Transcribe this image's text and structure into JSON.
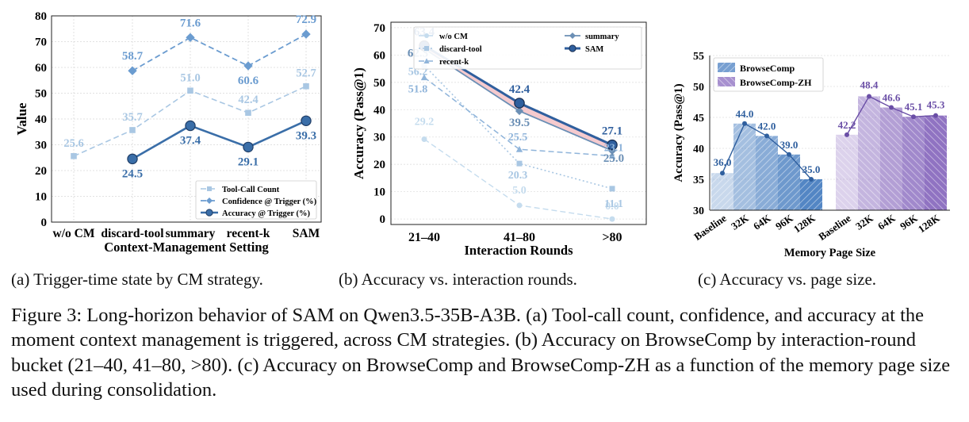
{
  "chart_data": [
    {
      "type": "line",
      "xlabel": "Context-Management Setting",
      "ylabel": "Value",
      "categories": [
        "w/o CM",
        "discard-tool",
        "summary",
        "recent-k",
        "SAM"
      ],
      "ylim": [
        0,
        80
      ],
      "yticks": [
        0,
        10,
        20,
        30,
        40,
        50,
        60,
        70,
        80
      ],
      "grid": true,
      "legend_position": "bottom-right",
      "series": [
        {
          "name": "Tool-Call Count",
          "values": [
            25.6,
            35.7,
            51.0,
            42.4,
            52.7
          ],
          "labels": [
            "25.6",
            "35.7",
            "51.0",
            "42.4",
            "52.7"
          ],
          "color": "#a9c7e3",
          "dash": "dashed",
          "marker": "square"
        },
        {
          "name": "Confidence @ Trigger (%)",
          "values": [
            null,
            58.7,
            71.6,
            60.6,
            72.9
          ],
          "labels": [
            "",
            "58.7",
            "71.6",
            "60.6",
            "72.9"
          ],
          "color": "#6b9cd0",
          "dash": "dashed",
          "marker": "diamond"
        },
        {
          "name": "Accuracy @ Trigger (%)",
          "values": [
            null,
            24.5,
            37.4,
            29.1,
            39.3
          ],
          "labels": [
            "",
            "24.5",
            "37.4",
            "29.1",
            "39.3"
          ],
          "color": "#3a6ea8",
          "dash": "solid",
          "marker": "circle"
        }
      ]
    },
    {
      "type": "line",
      "xlabel": "Interaction Rounds",
      "ylabel": "Accuracy (Pass@1)",
      "categories": [
        "21–40",
        "41–80",
        ">80"
      ],
      "ylim": [
        -2,
        72
      ],
      "yticks": [
        0,
        10,
        20,
        30,
        40,
        50,
        60,
        70
      ],
      "grid": true,
      "legend_position": "top-right",
      "series": [
        {
          "name": "w/o CM",
          "values": [
            29.2,
            5.0,
            0.0
          ],
          "labels": [
            "29.2",
            "5.0",
            "0.0"
          ],
          "color": "#c5dcee",
          "dash": "dashed",
          "marker": "circle"
        },
        {
          "name": "discard-tool",
          "values": [
            56.2,
            20.3,
            11.1
          ],
          "labels": [
            "56.2",
            "20.3",
            "11.1"
          ],
          "color": "#a9c7e3",
          "dash": "dotted",
          "marker": "square"
        },
        {
          "name": "recent-k",
          "values": [
            51.8,
            25.5,
            23.1
          ],
          "labels": [
            "51.8",
            "25.5",
            "23.1"
          ],
          "color": "#8fb4da",
          "dash": "dashed",
          "marker": "triangle"
        },
        {
          "name": "summary",
          "values": [
            62.3,
            39.5,
            25.0
          ],
          "labels": [
            "62.3",
            "39.5",
            "25.0"
          ],
          "color": "#6b8fb5",
          "dash": "solid",
          "marker": "diamond"
        },
        {
          "name": "SAM",
          "values": [
            63.4,
            42.4,
            27.1
          ],
          "labels": [
            "63.4",
            "42.4",
            "27.1"
          ],
          "color": "#2f5f9e",
          "dash": "solid",
          "marker": "circle"
        }
      ]
    },
    {
      "type": "bar",
      "xlabel": "Memory Page Size",
      "ylabel": "Accuracy (Pass@1)",
      "categories": [
        "Baseline",
        "32K",
        "64K",
        "96K",
        "128K"
      ],
      "ylim": [
        30,
        55
      ],
      "yticks": [
        30,
        35,
        40,
        45,
        50,
        55
      ],
      "grid": true,
      "legend_position": "top-left",
      "series": [
        {
          "name": "BrowseComp",
          "values": [
            36.0,
            44.0,
            42.0,
            39.0,
            35.0
          ],
          "labels": [
            "36.0",
            "44.0",
            "42.0",
            "39.0",
            "35.0"
          ],
          "color": "#4a7fc1",
          "label_color": "#2f5f9e"
        },
        {
          "name": "BrowseComp-ZH",
          "values": [
            42.2,
            48.4,
            46.6,
            45.1,
            45.3
          ],
          "labels": [
            "42.2",
            "48.4",
            "46.6",
            "45.1",
            "45.3"
          ],
          "color": "#8a6bbf",
          "label_color": "#6a4ea6"
        }
      ]
    }
  ],
  "subcaptions": {
    "a": "(a) Trigger-time state by CM strategy.",
    "b": "(b) Accuracy vs. interaction rounds.",
    "c": "(c) Accuracy vs. page size."
  },
  "caption": "Figure 3: Long-horizon behavior of SAM on Qwen3.5-35B-A3B. (a) Tool-call count, confidence, and accuracy at the moment context management is triggered, across CM strategies. (b) Accuracy on BrowseComp by interaction-round bucket (21–40, 41–80, >80). (c) Accuracy on BrowseComp and BrowseComp-ZH as a function of the memory page size used during consolidation."
}
